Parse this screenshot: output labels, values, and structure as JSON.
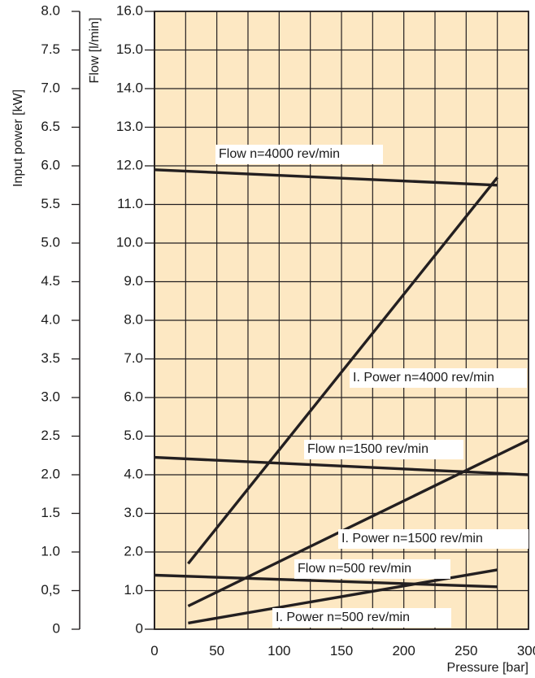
{
  "chart_data": {
    "type": "line",
    "xlabel": "Pressure [bar]",
    "ylabel_left": "Input power [kW]",
    "ylabel_right": "Flow [l/min]",
    "xlim": [
      0,
      300
    ],
    "ylim_power": [
      0,
      8.0
    ],
    "ylim_flow": [
      0,
      16.0
    ],
    "grid": true,
    "plot_background": "#fde8c3",
    "line_color": "#231f20",
    "x_ticks": [
      "0",
      "50",
      "100",
      "150",
      "200",
      "250",
      "300"
    ],
    "power_ticks": [
      "0",
      "0,5",
      "1.0",
      "1.5",
      "2.0",
      "2.5",
      "3.0",
      "3.5",
      "4.0",
      "4.5",
      "5.0",
      "5.5",
      "6.0",
      "6.5",
      "7.0",
      "7.5",
      "8.0"
    ],
    "flow_ticks": [
      "0",
      "1.0",
      "2.0",
      "3.0",
      "4.0",
      "5.0",
      "6.0",
      "7.0",
      "8.0",
      "9.0",
      "10.0",
      "11.0",
      "12.0",
      "13.0",
      "14.0",
      "15.0",
      "16.0"
    ],
    "series": [
      {
        "name": "Flow n=4000 rev/min",
        "axis": "flow",
        "x": [
          0,
          275
        ],
        "y": [
          11.9,
          11.5
        ]
      },
      {
        "name": "I. Power n=4000 rev/min",
        "axis": "power",
        "x": [
          27,
          275
        ],
        "y": [
          0.85,
          5.85
        ]
      },
      {
        "name": "Flow n=1500 rev/min",
        "axis": "flow",
        "x": [
          0,
          300
        ],
        "y": [
          4.45,
          4.0
        ]
      },
      {
        "name": "I. Power n=1500 rev/min",
        "axis": "power",
        "x": [
          27,
          300
        ],
        "y": [
          0.3,
          2.45
        ]
      },
      {
        "name": "Flow n=500 rev/min",
        "axis": "flow",
        "x": [
          0,
          275
        ],
        "y": [
          1.4,
          1.1
        ]
      },
      {
        "name": "I. Power n=500 rev/min",
        "axis": "power",
        "x": [
          27,
          275
        ],
        "y": [
          0.08,
          0.77
        ]
      }
    ]
  }
}
